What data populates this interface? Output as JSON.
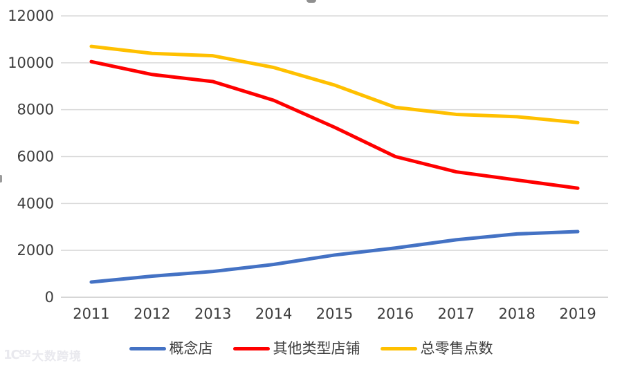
{
  "watermark": {
    "logo": "1Cºº",
    "text": "大数跨境"
  },
  "chart_data": {
    "type": "line",
    "x": [
      2011,
      2012,
      2013,
      2014,
      2015,
      2016,
      2017,
      2018,
      2019
    ],
    "series": [
      {
        "name": "概念店",
        "color": "#4472C4",
        "values": [
          650,
          900,
          1100,
          1400,
          1800,
          2100,
          2450,
          2700,
          2800
        ]
      },
      {
        "name": "其他类型店铺",
        "color": "#FF0000",
        "values": [
          10050,
          9500,
          9200,
          8400,
          7250,
          6000,
          5350,
          5000,
          4650
        ]
      },
      {
        "name": "总零售点数",
        "color": "#FFC000",
        "values": [
          10700,
          10400,
          10300,
          9800,
          9050,
          8100,
          7800,
          7700,
          7450
        ]
      }
    ],
    "title": "",
    "xlabel": "",
    "ylabel": "",
    "ylim": [
      0,
      12000
    ],
    "ytick_step": 2000,
    "grid": true,
    "legend_position": "bottom",
    "gridline_color": "#D9D9D9",
    "axisline_color": "#C9C9C9",
    "tick_label_color": "#3d3d3d"
  }
}
